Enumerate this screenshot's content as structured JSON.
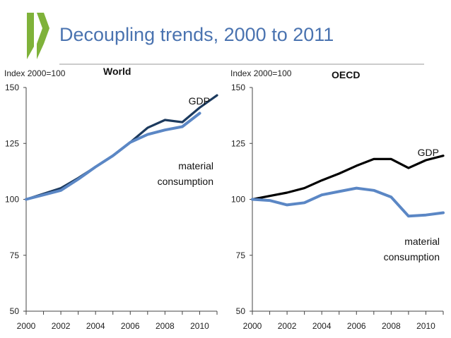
{
  "header": {
    "title": "Decoupling trends, 2000 to 2011",
    "logo_colors": [
      "#7fb23a",
      "#5a5a5a"
    ]
  },
  "colors": {
    "gdp_world": "#1c3a5e",
    "gdp_oecd": "#000000",
    "material": "#5b87c5",
    "axis": "#444444"
  },
  "chart_data": [
    {
      "type": "line",
      "title": "World",
      "ylabel": "Index 2000=100",
      "xlim": [
        2000,
        2011
      ],
      "ylim": [
        50,
        150
      ],
      "yticks": [
        50,
        75,
        100,
        125,
        150
      ],
      "xticks": [
        2000,
        2002,
        2004,
        2006,
        2008,
        2010
      ],
      "grid": false,
      "series": [
        {
          "name": "GDP",
          "x": [
            2000,
            2001,
            2002,
            2003,
            2004,
            2005,
            2006,
            2007,
            2008,
            2009,
            2010,
            2011
          ],
          "values": [
            100,
            102.5,
            105,
            109.5,
            114.5,
            119.5,
            125.5,
            132,
            135.5,
            134.5,
            141,
            146.5
          ]
        },
        {
          "name": "material consumption",
          "x": [
            2000,
            2001,
            2002,
            2003,
            2004,
            2005,
            2006,
            2007,
            2008,
            2009,
            2010
          ],
          "values": [
            100,
            102,
            104,
            109,
            114.5,
            119.5,
            125.5,
            129,
            131,
            132.5,
            138.5
          ]
        }
      ],
      "annotations": [
        {
          "text": "GDP",
          "series": "GDP"
        },
        {
          "lines": [
            "material",
            "consumption"
          ],
          "series": "material consumption"
        }
      ]
    },
    {
      "type": "line",
      "title": "OECD",
      "ylabel": "Index 2000=100",
      "xlim": [
        2000,
        2011
      ],
      "ylim": [
        50,
        150
      ],
      "yticks": [
        50,
        75,
        100,
        125,
        150
      ],
      "xticks": [
        2000,
        2002,
        2004,
        2006,
        2008,
        2010
      ],
      "grid": false,
      "series": [
        {
          "name": "GDP",
          "x": [
            2000,
            2001,
            2002,
            2003,
            2004,
            2005,
            2006,
            2007,
            2008,
            2009,
            2010,
            2011
          ],
          "values": [
            100,
            101.5,
            103,
            105,
            108.5,
            111.5,
            115,
            118,
            118,
            114,
            117.5,
            119.5
          ]
        },
        {
          "name": "material consumption",
          "x": [
            2000,
            2001,
            2002,
            2003,
            2004,
            2005,
            2006,
            2007,
            2008,
            2009,
            2010,
            2011
          ],
          "values": [
            100,
            99.5,
            97.5,
            98.5,
            102,
            103.5,
            105,
            104,
            101,
            92.5,
            93,
            94
          ]
        }
      ],
      "annotations": [
        {
          "text": "GDP",
          "series": "GDP"
        },
        {
          "lines": [
            "material",
            "consumption"
          ],
          "series": "material consumption"
        }
      ]
    }
  ]
}
